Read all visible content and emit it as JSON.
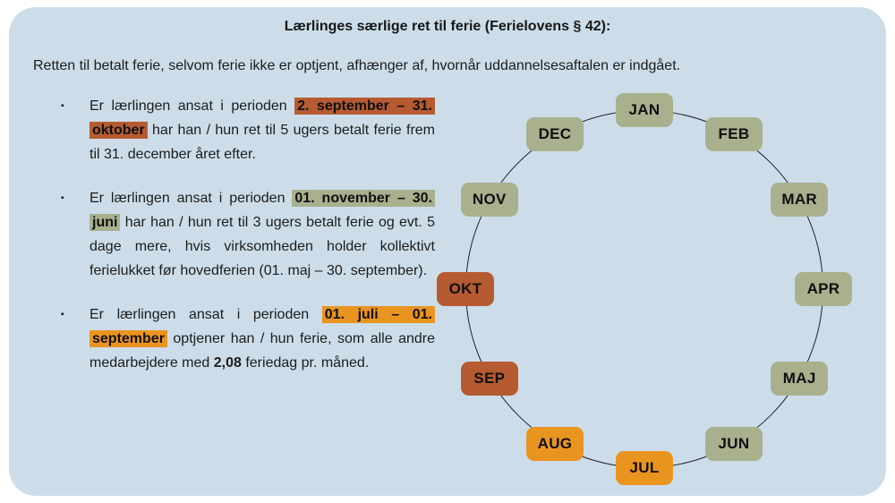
{
  "page": {
    "title": "Lærlinges særlige ret til ferie (Ferielovens § 42):",
    "intro": "Retten til betalt ferie, selvom ferie ikke er optjent, afhænger af, hvornår uddannelsesaftalen er indgået."
  },
  "colors": {
    "card_bg": "#ccdde9",
    "rust": "#b65b31",
    "sage": "#a9b08e",
    "orange": "#ea9420",
    "text": "#1c1c1c",
    "circle_line": "#20202e"
  },
  "bullet_marker": "▪",
  "bullets": [
    {
      "segments": [
        {
          "text": "Er lærlingen ansat i perioden ",
          "style": "plain"
        },
        {
          "text": "2. september – 31. oktober",
          "style": "rust"
        },
        {
          "text": " har han / hun ret til 5 ugers betalt ferie frem til 31. december året efter.",
          "style": "plain"
        }
      ]
    },
    {
      "segments": [
        {
          "text": "Er lærlingen ansat i perioden ",
          "style": "plain"
        },
        {
          "text": "01. novem­ber – 30. juni",
          "style": "sage"
        },
        {
          "text": " har han / hun ret til 3 ugers betalt ferie og evt. 5 dage mere, hvis virk­somheden holder kollektivt ferielukket før hovedferien (01. maj – 30. september).",
          "style": "plain"
        }
      ]
    },
    {
      "segments": [
        {
          "text": "Er lærlingen ansat i perioden ",
          "style": "plain"
        },
        {
          "text": "01. juli – 01. september",
          "style": "orange"
        },
        {
          "text": " optjener han / hun ferie, som alle andre medarbejdere med ",
          "style": "plain"
        },
        {
          "text": "2,08",
          "style": "bold"
        },
        {
          "text": " ferie­dag pr. måned.",
          "style": "plain"
        }
      ]
    }
  ],
  "calendar": {
    "months": [
      {
        "label": "JAN",
        "color": "sage"
      },
      {
        "label": "FEB",
        "color": "sage"
      },
      {
        "label": "MAR",
        "color": "sage"
      },
      {
        "label": "APR",
        "color": "sage"
      },
      {
        "label": "MAJ",
        "color": "sage"
      },
      {
        "label": "JUN",
        "color": "sage"
      },
      {
        "label": "JUL",
        "color": "orange"
      },
      {
        "label": "AUG",
        "color": "orange"
      },
      {
        "label": "SEP",
        "color": "rust"
      },
      {
        "label": "OKT",
        "color": "rust"
      },
      {
        "label": "NOV",
        "color": "sage"
      },
      {
        "label": "DEC",
        "color": "sage"
      }
    ]
  }
}
